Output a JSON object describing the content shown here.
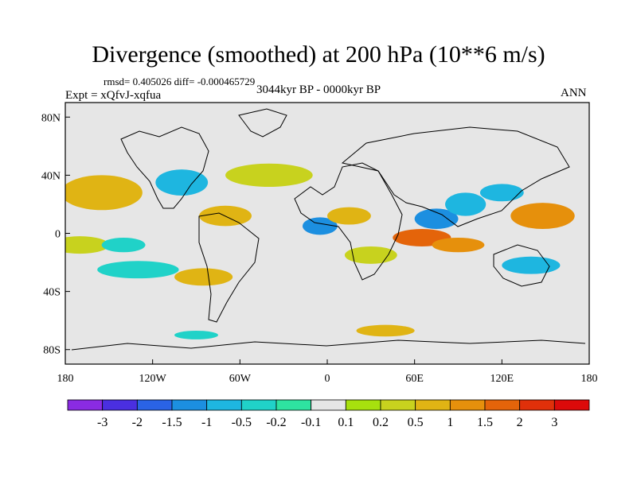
{
  "chart_data": {
    "type": "heatmap",
    "title": "Divergence (smoothed) at 200 hPa (10**6 m/s)",
    "stats": "rmsd= 0.405026 diff= -0.000465729",
    "experiment": "Expt = xQfvJ-xqfua",
    "period": "3044kyr BP - 0000kyr BP",
    "season": "ANN",
    "xlim": [
      -180,
      180
    ],
    "ylim": [
      -90,
      90
    ],
    "xtick_labels": [
      "180",
      "120W",
      "60W",
      "0",
      "60E",
      "120E",
      "180"
    ],
    "xtick_values": [
      -180,
      -120,
      -60,
      0,
      60,
      120,
      180
    ],
    "ytick_labels": [
      "80N",
      "40N",
      "0",
      "40S",
      "80S"
    ],
    "ytick_values": [
      80,
      40,
      0,
      -40,
      -80
    ],
    "colorbar": {
      "labels": [
        "-3",
        "-2",
        "-1.5",
        "-1",
        "-0.5",
        "-0.2",
        "-0.1",
        "0.1",
        "0.2",
        "0.5",
        "1",
        "1.5",
        "2",
        "3"
      ],
      "colors": [
        "#8a2be2",
        "#4a2fe0",
        "#2a63e6",
        "#1c8fe0",
        "#1eb6e0",
        "#20d2c8",
        "#2ee3a0",
        "#e6e6e6",
        "#a7e00e",
        "#c8d21e",
        "#e0b414",
        "#e6900c",
        "#e4640a",
        "#e0300a",
        "#dc0a0a"
      ]
    },
    "anomaly_regions": [
      {
        "lon": -155,
        "lat": 28,
        "rx": 28,
        "ry": 12,
        "value": 0.8
      },
      {
        "lon": -100,
        "lat": 35,
        "rx": 18,
        "ry": 9,
        "value": -0.6
      },
      {
        "lon": -40,
        "lat": 40,
        "rx": 30,
        "ry": 8,
        "value": 0.5
      },
      {
        "lon": -170,
        "lat": -8,
        "rx": 20,
        "ry": 6,
        "value": 0.4
      },
      {
        "lon": -140,
        "lat": -8,
        "rx": 15,
        "ry": 5,
        "value": -0.4
      },
      {
        "lon": -70,
        "lat": 12,
        "rx": 18,
        "ry": 7,
        "value": 0.7
      },
      {
        "lon": -5,
        "lat": 5,
        "rx": 12,
        "ry": 6,
        "value": -1.4
      },
      {
        "lon": 15,
        "lat": 12,
        "rx": 15,
        "ry": 6,
        "value": 0.9
      },
      {
        "lon": 65,
        "lat": -3,
        "rx": 20,
        "ry": 6,
        "value": 1.8
      },
      {
        "lon": 90,
        "lat": -8,
        "rx": 18,
        "ry": 5,
        "value": 1.4
      },
      {
        "lon": 75,
        "lat": 10,
        "rx": 15,
        "ry": 7,
        "value": -1.1
      },
      {
        "lon": 95,
        "lat": 20,
        "rx": 14,
        "ry": 8,
        "value": -0.9
      },
      {
        "lon": 148,
        "lat": 12,
        "rx": 22,
        "ry": 9,
        "value": 1.5
      },
      {
        "lon": 120,
        "lat": 28,
        "rx": 15,
        "ry": 6,
        "value": -0.8
      },
      {
        "lon": -130,
        "lat": -25,
        "rx": 28,
        "ry": 6,
        "value": -0.3
      },
      {
        "lon": -85,
        "lat": -30,
        "rx": 20,
        "ry": 6,
        "value": 0.6
      },
      {
        "lon": 30,
        "lat": -15,
        "rx": 18,
        "ry": 6,
        "value": 0.5
      },
      {
        "lon": 140,
        "lat": -22,
        "rx": 20,
        "ry": 6,
        "value": -0.6
      },
      {
        "lon": 40,
        "lat": -67,
        "rx": 20,
        "ry": 4,
        "value": 0.6
      },
      {
        "lon": -90,
        "lat": -70,
        "rx": 15,
        "ry": 3,
        "value": -0.3
      }
    ]
  }
}
